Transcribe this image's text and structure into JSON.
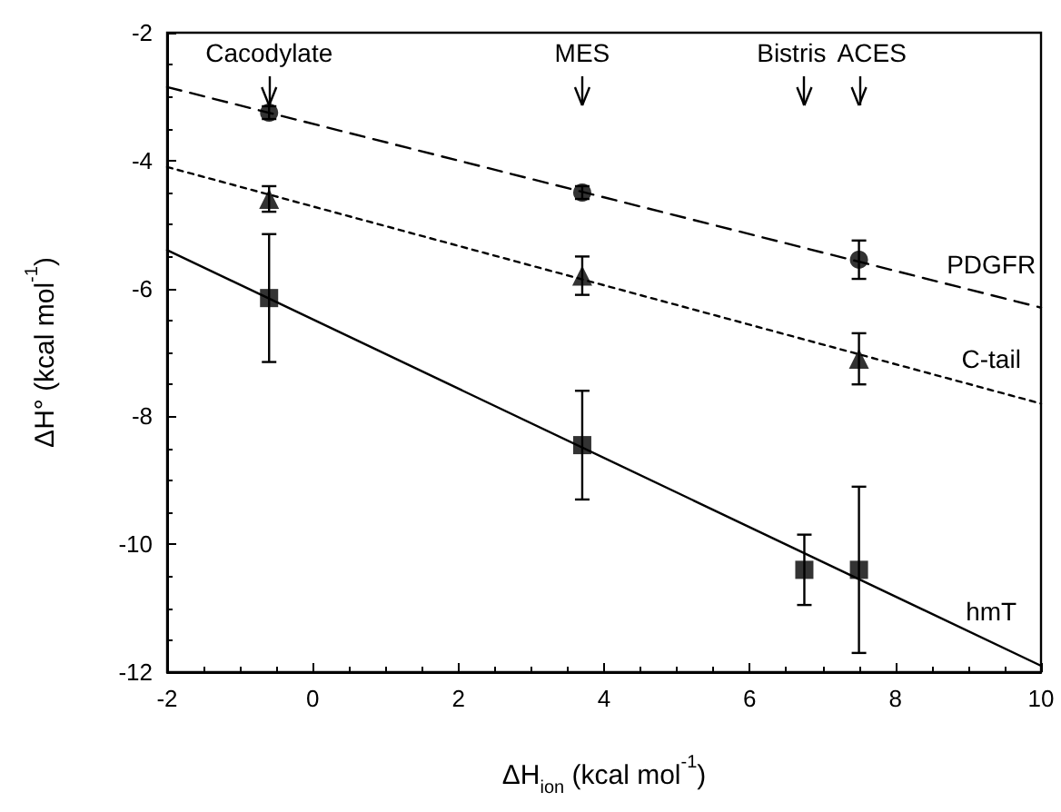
{
  "chart_data": {
    "type": "scatter",
    "xlabel": "ΔH$_{ion}$ (kcal mol$^{-1}$)",
    "ylabel": "ΔH° (kcal mol$^{-1}$)",
    "xlim": [
      -2,
      10
    ],
    "xticks": [
      -2,
      0,
      2,
      4,
      6,
      8,
      10
    ],
    "ylim": [
      -12,
      -2
    ],
    "yticks": [
      -12,
      -10,
      -8,
      -6,
      -4,
      -2
    ],
    "grid": false,
    "legend": false,
    "series": [
      {
        "type": "scatter",
        "color": "#000000",
        "marker": "circle",
        "x": [
          -0.6,
          3.7,
          7.5
        ],
        "values": [
          -3.25,
          -4.5,
          -5.55
        ],
        "errors": [
          0.1,
          0.1,
          0.3
        ]
      },
      {
        "type": "scatter",
        "color": "#000000",
        "marker": "triangle",
        "x": [
          -0.6,
          3.7,
          7.5
        ],
        "values": [
          -4.6,
          -5.8,
          -7.1
        ],
        "errors": [
          0.2,
          0.3,
          0.4
        ]
      },
      {
        "type": "scatter",
        "color": "#000000",
        "marker": "square",
        "x": [
          -0.6,
          3.7,
          6.75,
          7.5
        ],
        "values": [
          -6.15,
          -8.45,
          -10.4,
          -10.4
        ],
        "errors": [
          1.0,
          0.85,
          0.55,
          1.3
        ]
      },
      {
        "type": "line",
        "name": "PDGFR",
        "color": "#000000",
        "marker": "none",
        "line_style": "dashed",
        "x": [
          -2,
          10
        ],
        "values": [
          -2.85,
          -6.3
        ]
      },
      {
        "type": "line",
        "name": "C-tail",
        "color": "#000000",
        "marker": "none",
        "line_style": "dotted",
        "x": [
          -2,
          10
        ],
        "values": [
          -4.1,
          -7.8
        ]
      },
      {
        "type": "line",
        "name": "hmT",
        "color": "#000000",
        "marker": "none",
        "line_style": "solid",
        "x": [
          -2,
          10
        ],
        "values": [
          -5.4,
          -11.9
        ]
      }
    ],
    "ref_lines": [
      {
        "axis": "x",
        "value": -0.6,
        "label": "Cacodylate"
      },
      {
        "axis": "x",
        "value": 3.7,
        "label": "MES"
      },
      {
        "axis": "x",
        "value": 6.75,
        "label": "Bistris"
      },
      {
        "axis": "x",
        "value": 7.5,
        "label": "ACES"
      }
    ]
  }
}
